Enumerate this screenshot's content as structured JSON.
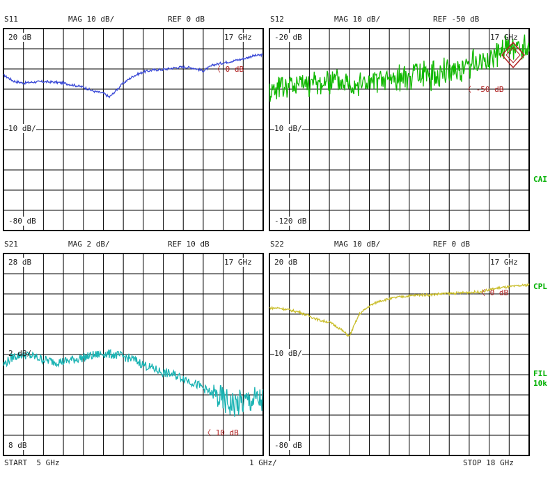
{
  "colors": {
    "s11": "#3a49d6",
    "s12": "#10b800",
    "s21": "#1ab3b3",
    "s22": "#c9bd2a",
    "ref": "#b02020",
    "side": "#00b000"
  },
  "side_labels": {
    "cal": "CAI",
    "cpl": "CPL",
    "fil": "FIL",
    "fil_bw": "10k"
  },
  "footer": {
    "start": "START  5 GHz",
    "scale": "1 GHz/",
    "stop": "STOP 18 GHz"
  },
  "chart_data": [
    {
      "type": "line",
      "name": "S11",
      "header_param": "S11",
      "header_mag": "MAG 10 dB/",
      "header_ref": "REF 0 dB",
      "top_label": "20 dB",
      "bottom_label": "-80 dB",
      "div_label": "10 dB/",
      "freq_label": "17 GHz",
      "ref_marker": "0 dB",
      "ylim": [
        -80,
        20
      ],
      "xlim": [
        5,
        18
      ],
      "x": [
        5,
        5.5,
        6,
        6.5,
        7,
        7.5,
        8,
        8.5,
        9,
        9.5,
        10,
        10.3,
        10.5,
        11,
        11.5,
        12,
        12.5,
        13,
        13.5,
        14,
        14.5,
        15,
        15.5,
        16,
        16.5,
        17,
        17.5,
        18
      ],
      "values": [
        -3,
        -6,
        -7,
        -6.5,
        -6.3,
        -6.5,
        -7,
        -8,
        -9,
        -11,
        -12,
        -14,
        -12,
        -7,
        -3.5,
        -1.5,
        -0.5,
        -0.3,
        0.5,
        1,
        0.5,
        -1,
        2,
        3,
        4,
        5,
        6.5,
        7
      ]
    },
    {
      "type": "line",
      "name": "S12",
      "header_param": "S12",
      "header_mag": "MAG 10 dB/",
      "header_ref": "REF -50 dB",
      "top_label": "-20 dB",
      "bottom_label": "-120 dB",
      "div_label": "10 dB/",
      "freq_label": "17 GHz",
      "ref_marker": "-50 dB",
      "ylim": [
        -120,
        -20
      ],
      "xlim": [
        5,
        18
      ],
      "x": [
        5,
        6,
        7,
        8,
        9,
        10,
        11,
        12,
        13,
        14,
        15,
        16,
        16.5,
        17,
        17.5,
        18
      ],
      "values": [
        -50,
        -48,
        -47,
        -46,
        -46,
        -47,
        -45,
        -44,
        -43,
        -41,
        -38,
        -35,
        -32,
        -30,
        -31,
        -28
      ]
    },
    {
      "type": "line",
      "name": "S21",
      "header_param": "S21",
      "header_mag": "MAG 2 dB/",
      "header_ref": "REF 10 dB",
      "top_label": "28 dB",
      "bottom_label": "8 dB",
      "div_label": "2 dB/",
      "freq_label": "17 GHz",
      "ref_marker": "10 dB",
      "ylim": [
        8,
        28
      ],
      "xlim": [
        5,
        18
      ],
      "x": [
        5,
        5.5,
        6,
        6.5,
        7,
        7.5,
        8,
        8.5,
        9,
        9.5,
        10,
        10.5,
        11,
        11.5,
        12,
        12.5,
        13,
        13.5,
        14,
        14.5,
        15,
        15.5,
        16,
        16.5,
        17,
        17.5,
        18
      ],
      "values": [
        17,
        17.8,
        18,
        17.8,
        17.5,
        17.3,
        17.3,
        17.5,
        17.7,
        17.9,
        18.1,
        18,
        17.8,
        17.5,
        17,
        16.6,
        16.2,
        16,
        15.7,
        15.2,
        14.7,
        14,
        13.4,
        13,
        13.2,
        13.5,
        13.4
      ]
    },
    {
      "type": "line",
      "name": "S22",
      "header_param": "S22",
      "header_mag": "MAG 10 dB/",
      "header_ref": "REF 0 dB",
      "top_label": "20 dB",
      "bottom_label": "-80 dB",
      "div_label": "10 dB/",
      "freq_label": "17 GHz",
      "ref_marker": "0 dB",
      "ylim": [
        -80,
        20
      ],
      "xlim": [
        5,
        18
      ],
      "x": [
        5,
        5.5,
        6,
        6.5,
        7,
        7.5,
        8,
        8.5,
        9,
        9.5,
        10,
        10.5,
        11,
        11.5,
        12,
        12.5,
        13,
        13.5,
        14,
        14.5,
        15,
        15.5,
        16,
        16.5,
        17,
        17.5,
        18
      ],
      "values": [
        -7,
        -7,
        -8,
        -9,
        -11,
        -13,
        -14,
        -17,
        -21,
        -10,
        -6,
        -3.5,
        -2.5,
        -1.5,
        -1,
        -0.5,
        -0.5,
        0,
        0.2,
        0.5,
        0.8,
        1,
        2,
        3,
        3.5,
        4,
        4.5
      ]
    }
  ]
}
